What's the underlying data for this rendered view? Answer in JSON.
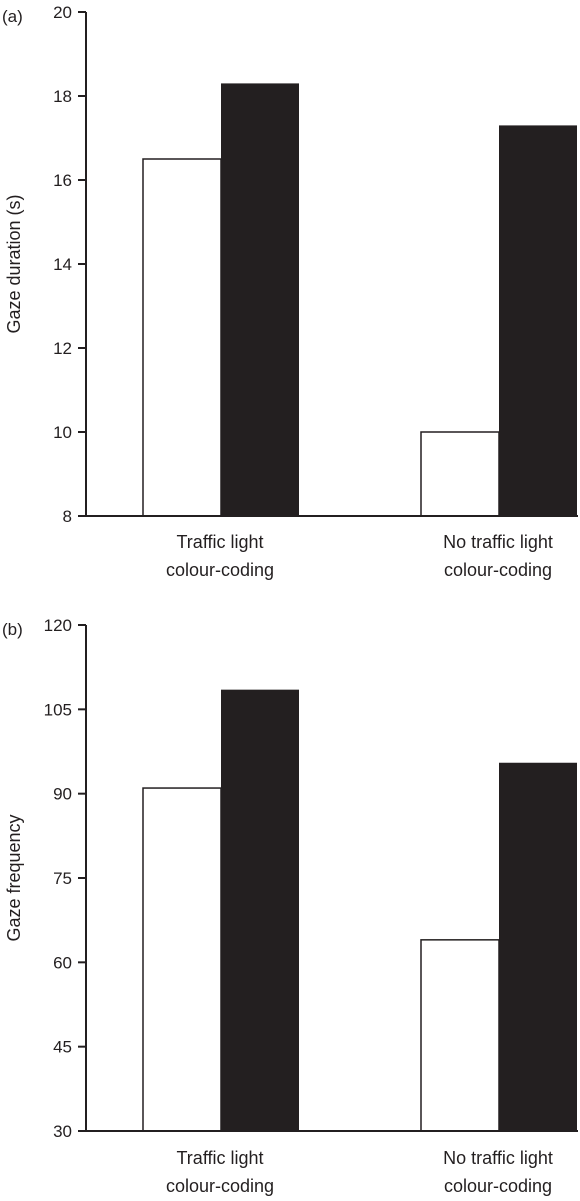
{
  "chart_data": [
    {
      "panel_label": "(a)",
      "type": "bar",
      "categories": [
        "Traffic light colour-coding",
        "No traffic light colour-coding"
      ],
      "category_lines": [
        [
          "Traffic light",
          "colour-coding"
        ],
        [
          "No traffic light",
          "colour-coding"
        ]
      ],
      "series": [
        {
          "fill": "#ffffff",
          "values": [
            16.5,
            10.0
          ]
        },
        {
          "fill": "#231f20",
          "values": [
            18.3,
            17.3
          ]
        }
      ],
      "ylabel": "Gaze duration (s)",
      "ylim": [
        8,
        20
      ],
      "yticks": [
        8,
        10,
        12,
        14,
        16,
        18,
        20
      ],
      "grid": false
    },
    {
      "panel_label": "(b)",
      "type": "bar",
      "categories": [
        "Traffic light colour-coding",
        "No traffic light colour-coding"
      ],
      "category_lines": [
        [
          "Traffic light",
          "colour-coding"
        ],
        [
          "No traffic light",
          "colour-coding"
        ]
      ],
      "series": [
        {
          "fill": "#ffffff",
          "values": [
            91,
            64
          ]
        },
        {
          "fill": "#231f20",
          "values": [
            108.5,
            95.5
          ]
        }
      ],
      "ylabel": "Gaze frequency",
      "ylim": [
        30,
        120
      ],
      "yticks": [
        30,
        45,
        60,
        75,
        90,
        105,
        120
      ],
      "grid": false
    }
  ]
}
